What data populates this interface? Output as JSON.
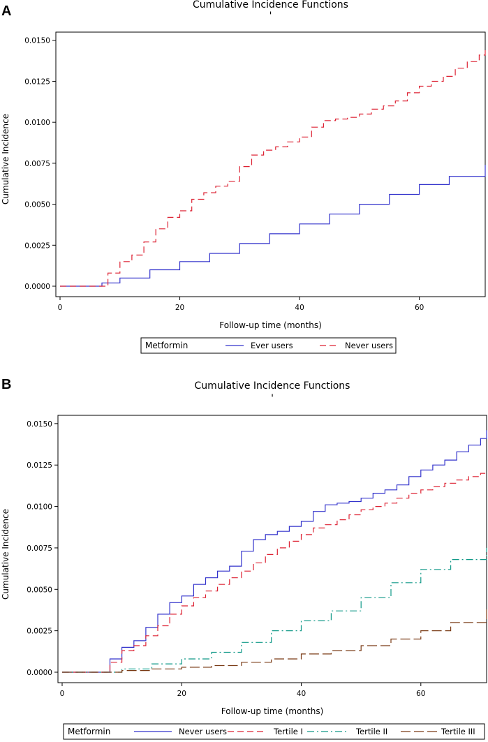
{
  "chart_data": [
    {
      "panel": "A",
      "type": "line",
      "title": "Cumulative Incidence Functions",
      "subtitle": "'",
      "xlabel": "Follow-up time (months)",
      "ylabel": "Cumulative Incidence",
      "xlim": [
        0,
        71
      ],
      "ylim": [
        0,
        0.0155
      ],
      "xticks": [
        0,
        20,
        40,
        60
      ],
      "xtick_labels": [
        "0",
        "20",
        "40",
        "60"
      ],
      "yticks": [
        0,
        0.0025,
        0.005,
        0.0075,
        0.01,
        0.0125,
        0.015
      ],
      "ytick_labels": [
        "0.0000",
        "0.0025",
        "0.0050",
        "0.0075",
        "0.0100",
        "0.0125",
        "0.0150"
      ],
      "legend_title": "Metformin",
      "legend_position": "bottom",
      "series": [
        {
          "name": "Ever users",
          "color": "#3333cc",
          "dash": "solid",
          "x": [
            0,
            6,
            7,
            10,
            15,
            20,
            25,
            30,
            35,
            40,
            45,
            50,
            55,
            60,
            65,
            71
          ],
          "y": [
            0,
            0,
            0.0002,
            0.0005,
            0.001,
            0.0015,
            0.002,
            0.0026,
            0.0032,
            0.0038,
            0.0044,
            0.005,
            0.0056,
            0.0062,
            0.0067,
            0.0074
          ]
        },
        {
          "name": "Never users",
          "color": "#dd2233",
          "dash": "dashed",
          "x": [
            0,
            6,
            8,
            10,
            12,
            14,
            16,
            18,
            20,
            22,
            24,
            26,
            28,
            30,
            32,
            34,
            36,
            38,
            40,
            42,
            44,
            46,
            48,
            50,
            52,
            54,
            56,
            58,
            60,
            62,
            64,
            66,
            68,
            70,
            71
          ],
          "y": [
            0,
            0,
            0.0008,
            0.0015,
            0.0019,
            0.0027,
            0.0035,
            0.0042,
            0.0046,
            0.0053,
            0.0057,
            0.0061,
            0.0064,
            0.0073,
            0.008,
            0.0083,
            0.0085,
            0.0088,
            0.0091,
            0.0097,
            0.0101,
            0.0102,
            0.0103,
            0.0105,
            0.0108,
            0.011,
            0.0113,
            0.0118,
            0.0122,
            0.0125,
            0.0128,
            0.0133,
            0.0137,
            0.0141,
            0.0146
          ]
        }
      ]
    },
    {
      "panel": "B",
      "type": "line",
      "title": "Cumulative Incidence Functions",
      "subtitle": "'",
      "xlabel": "Follow-up time (months)",
      "ylabel": "Cumulative Incidence",
      "xlim": [
        0,
        71
      ],
      "ylim": [
        0,
        0.0155
      ],
      "xticks": [
        0,
        20,
        40,
        60
      ],
      "xtick_labels": [
        "0",
        "20",
        "40",
        "60"
      ],
      "yticks": [
        0,
        0.0025,
        0.005,
        0.0075,
        0.01,
        0.0125,
        0.015
      ],
      "ytick_labels": [
        "0.0000",
        "0.0025",
        "0.0050",
        "0.0075",
        "0.0100",
        "0.0125",
        "0.0150"
      ],
      "legend_title": "Metformin",
      "legend_position": "bottom",
      "series": [
        {
          "name": "Never users",
          "color": "#3333cc",
          "dash": "solid",
          "x": [
            0,
            6,
            8,
            10,
            12,
            14,
            16,
            18,
            20,
            22,
            24,
            26,
            28,
            30,
            32,
            34,
            36,
            38,
            40,
            42,
            44,
            46,
            48,
            50,
            52,
            54,
            56,
            58,
            60,
            62,
            64,
            66,
            68,
            70,
            71
          ],
          "y": [
            0,
            0,
            0.0008,
            0.0015,
            0.0019,
            0.0027,
            0.0035,
            0.0042,
            0.0046,
            0.0053,
            0.0057,
            0.0061,
            0.0064,
            0.0073,
            0.008,
            0.0083,
            0.0085,
            0.0088,
            0.0091,
            0.0097,
            0.0101,
            0.0102,
            0.0103,
            0.0105,
            0.0108,
            0.011,
            0.0113,
            0.0118,
            0.0122,
            0.0125,
            0.0128,
            0.0133,
            0.0137,
            0.0141,
            0.0146
          ]
        },
        {
          "name": "Tertile I",
          "color": "#dd2233",
          "dash": "dashed",
          "x": [
            0,
            6,
            8,
            10,
            12,
            14,
            16,
            18,
            20,
            22,
            24,
            26,
            28,
            30,
            32,
            34,
            36,
            38,
            40,
            42,
            44,
            46,
            48,
            50,
            52,
            54,
            56,
            58,
            60,
            62,
            64,
            66,
            68,
            70,
            71
          ],
          "y": [
            0,
            0,
            0.0006,
            0.0013,
            0.0016,
            0.0022,
            0.0028,
            0.0035,
            0.004,
            0.0045,
            0.0049,
            0.0053,
            0.0057,
            0.0061,
            0.0066,
            0.0071,
            0.0075,
            0.0079,
            0.0083,
            0.0087,
            0.0089,
            0.0092,
            0.0095,
            0.0098,
            0.01,
            0.0102,
            0.0105,
            0.0108,
            0.011,
            0.0112,
            0.0114,
            0.0116,
            0.0118,
            0.012,
            0.0121
          ]
        },
        {
          "name": "Tertile II",
          "color": "#119988",
          "dash": "dashdot",
          "x": [
            0,
            6,
            10,
            15,
            20,
            25,
            30,
            35,
            40,
            45,
            50,
            55,
            60,
            65,
            71
          ],
          "y": [
            0,
            0,
            0.0002,
            0.0005,
            0.0008,
            0.0012,
            0.0018,
            0.0025,
            0.0031,
            0.0037,
            0.0045,
            0.0054,
            0.0062,
            0.0068,
            0.0075
          ]
        },
        {
          "name": "Tertile III",
          "color": "#7a3b16",
          "dash": "longdash",
          "x": [
            0,
            6,
            10,
            15,
            20,
            25,
            30,
            35,
            40,
            45,
            50,
            55,
            60,
            65,
            71
          ],
          "y": [
            0,
            0,
            0.0001,
            0.0002,
            0.0003,
            0.0004,
            0.0006,
            0.0008,
            0.0011,
            0.0013,
            0.0016,
            0.002,
            0.0025,
            0.003,
            0.0038
          ]
        }
      ]
    }
  ]
}
